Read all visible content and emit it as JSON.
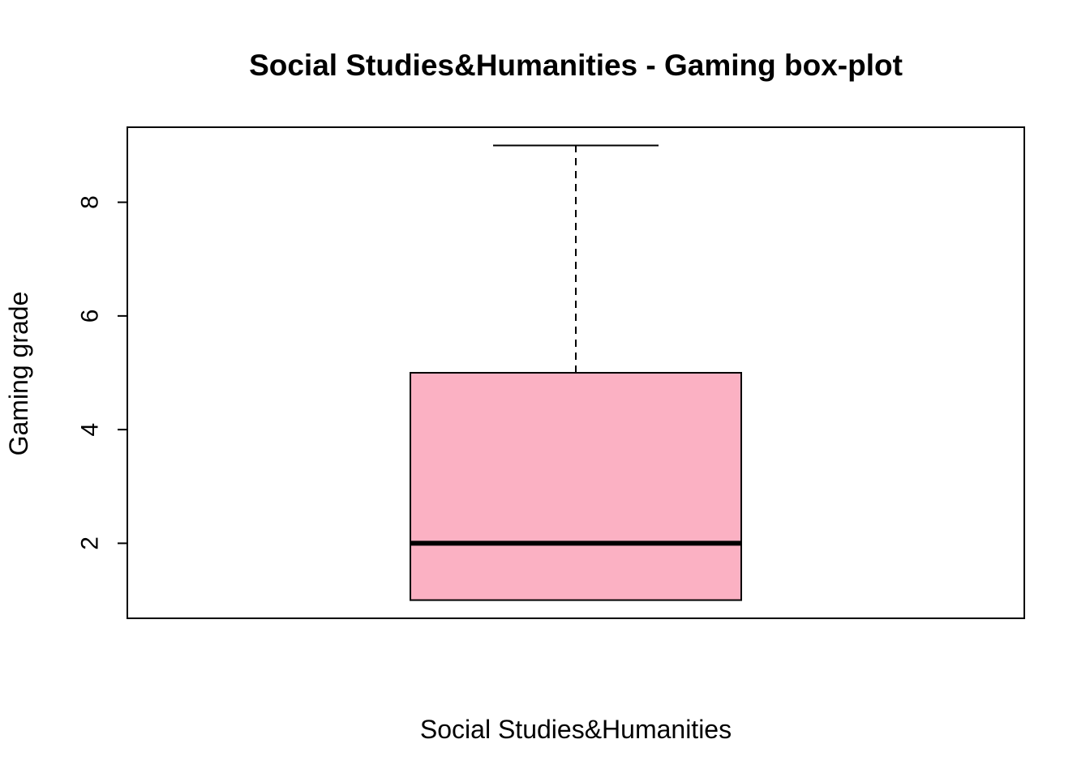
{
  "chart_data": {
    "type": "box",
    "title": "Social Studies&Humanities - Gaming box-plot",
    "xlabel": "Social Studies&Humanities",
    "ylabel": "Gaming grade",
    "ylim": [
      0.68,
      9.32
    ],
    "yticks": [
      2,
      4,
      6,
      8
    ],
    "ytick_labels": [
      "2",
      "4",
      "6",
      "8"
    ],
    "box": {
      "min": 1,
      "q1": 1,
      "median": 2,
      "q3": 5,
      "max": 9
    },
    "colors": {
      "box_fill": "#FBB1C3",
      "stroke": "#000000"
    },
    "grid": false
  }
}
